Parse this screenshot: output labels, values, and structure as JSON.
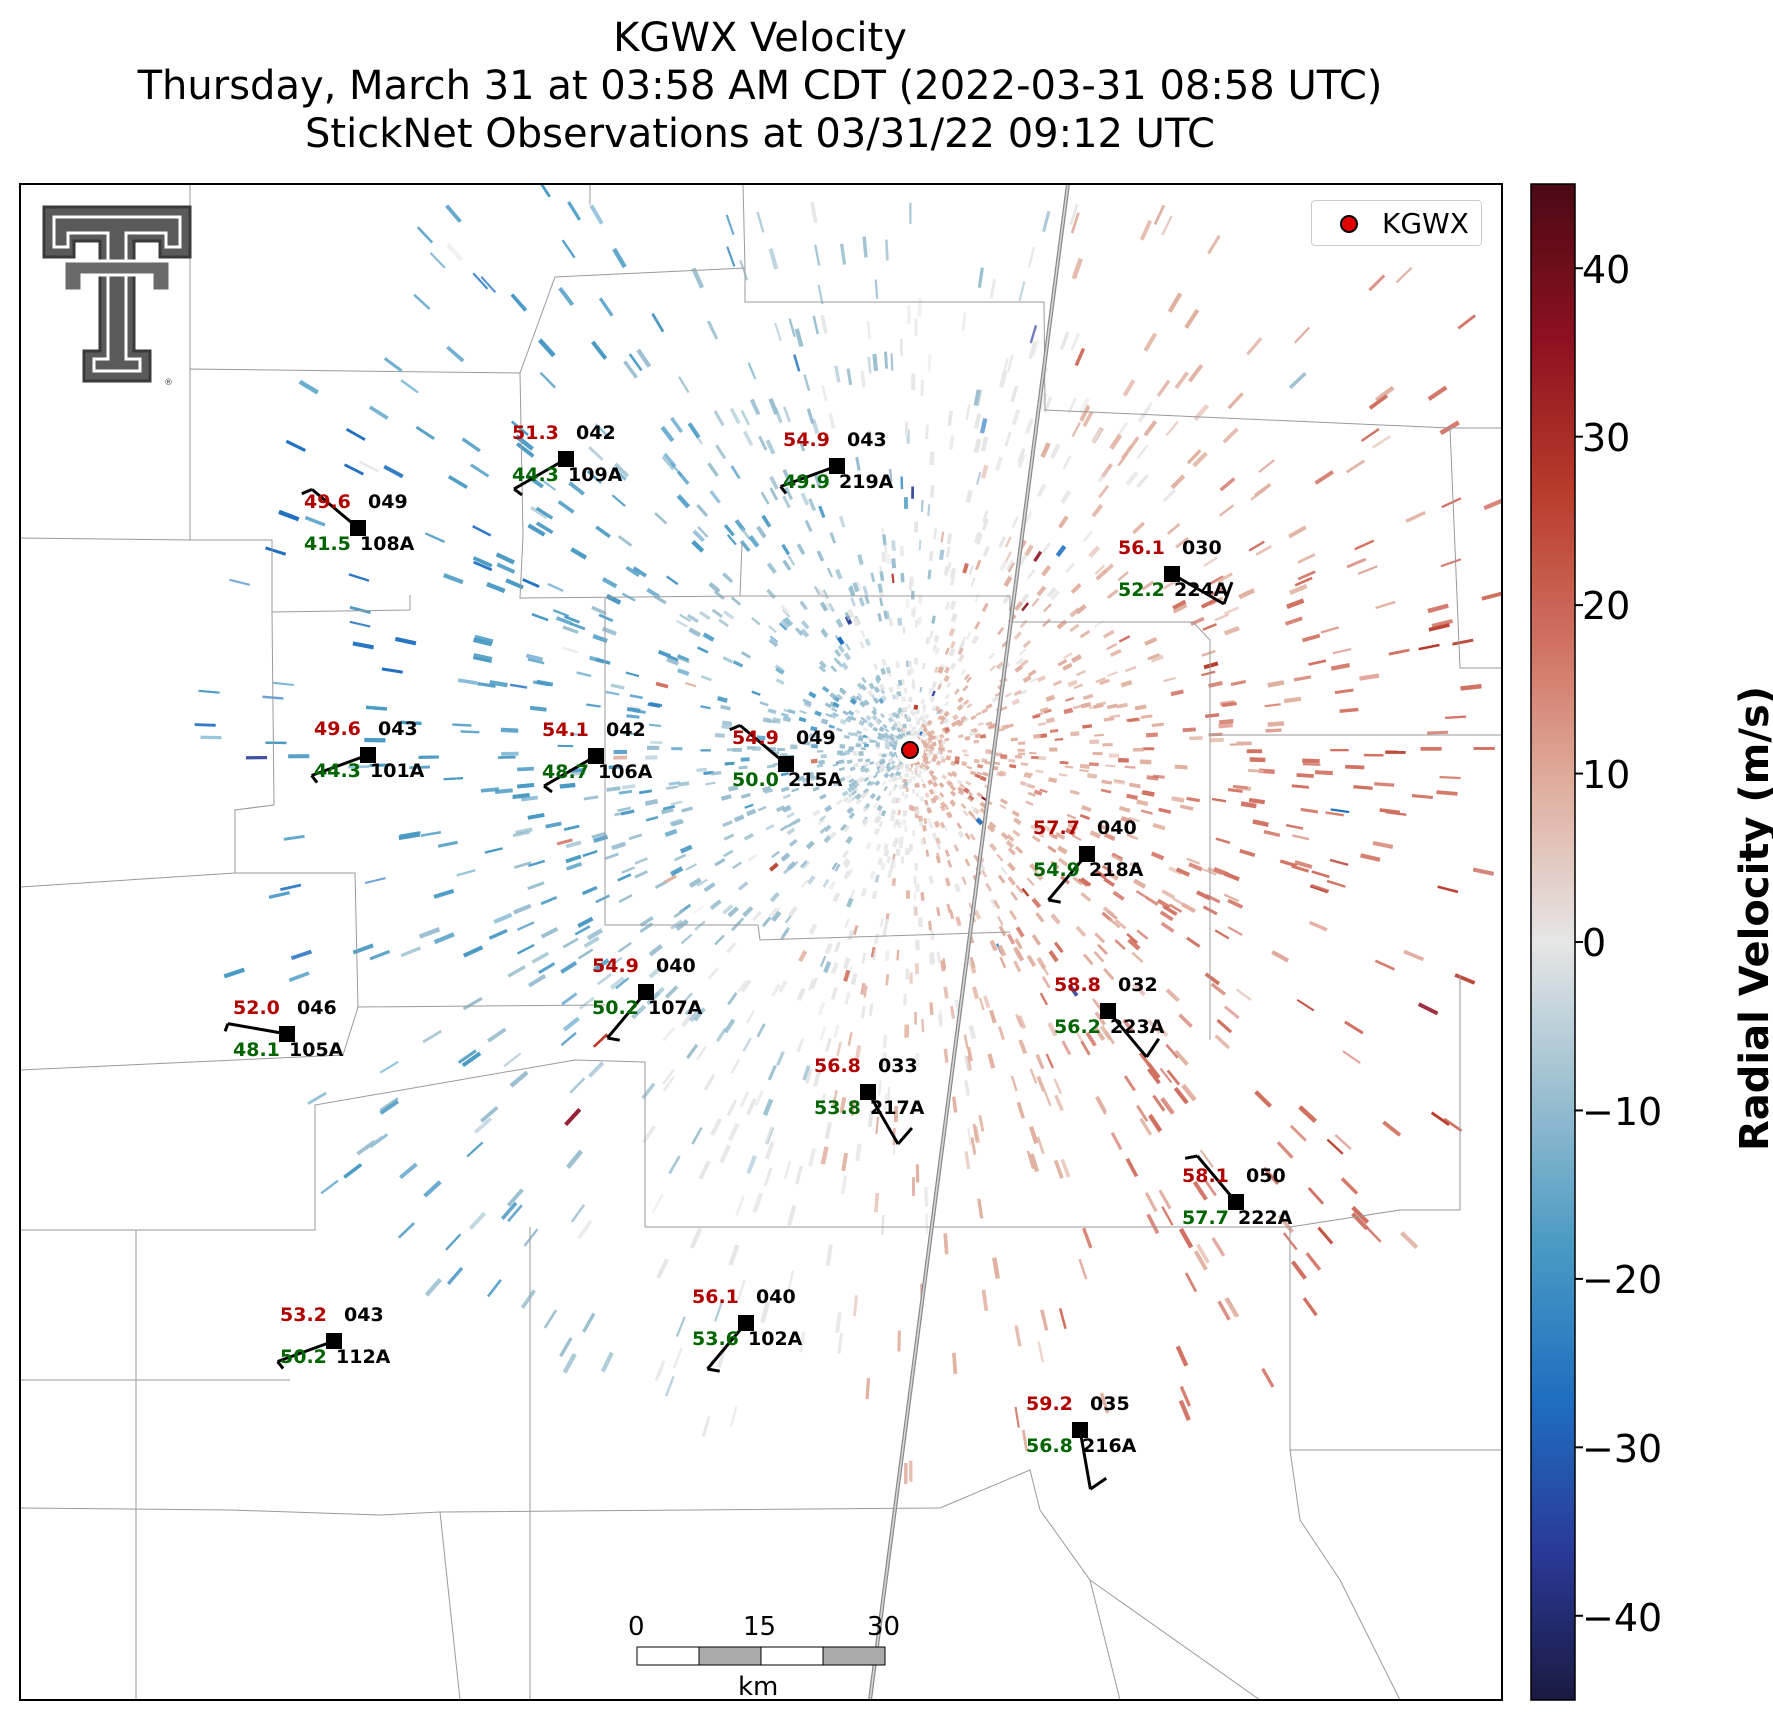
{
  "title": {
    "line1": "KGWX Velocity",
    "line2": "Thursday, March 31 at 03:58 AM CDT (2022-03-31 08:58 UTC)",
    "line3": "StickNet Observations at 03/31/22 09:12 UTC"
  },
  "radar": {
    "name": "KGWX"
  },
  "legend": {
    "label": "KGWX"
  },
  "colorbar": {
    "label": "Radial Velocity (m/s)",
    "ticks": [
      "40",
      "30",
      "20",
      "10",
      "0",
      "−10",
      "−20",
      "−30",
      "−40"
    ],
    "tick_values": [
      40,
      30,
      20,
      10,
      0,
      -10,
      -20,
      -30,
      -40
    ],
    "range": [
      -45,
      45
    ],
    "colors": [
      "#1a1a40",
      "#2a3a9a",
      "#1f6fc0",
      "#4a9ac4",
      "#9bbfd0",
      "#e6e6e6",
      "#e0b0a0",
      "#d07060",
      "#b83a2a",
      "#8c1020",
      "#4a0a14"
    ]
  },
  "scale_bar": {
    "ticks": [
      "0",
      "15",
      "30"
    ],
    "unit": "km"
  },
  "logo": {
    "name": "Texas Tech Double T",
    "mark": "®"
  },
  "stations": [
    {
      "id": "108A",
      "temp": "49.6",
      "dew": "41.5",
      "dir": "049"
    },
    {
      "id": "109A",
      "temp": "51.3",
      "dew": "44.3",
      "dir": "042"
    },
    {
      "id": "219A",
      "temp": "54.9",
      "dew": "49.9",
      "dir": "043"
    },
    {
      "id": "224A",
      "temp": "56.1",
      "dew": "52.2",
      "dir": "030"
    },
    {
      "id": "101A",
      "temp": "49.6",
      "dew": "44.3",
      "dir": "043"
    },
    {
      "id": "106A",
      "temp": "54.1",
      "dew": "48.7",
      "dir": "042"
    },
    {
      "id": "215A",
      "temp": "54.9",
      "dew": "50.0",
      "dir": "049"
    },
    {
      "id": "218A",
      "temp": "57.7",
      "dew": "54.9",
      "dir": "040"
    },
    {
      "id": "107A",
      "temp": "54.9",
      "dew": "50.2",
      "dir": "040"
    },
    {
      "id": "105A",
      "temp": "52.0",
      "dew": "48.1",
      "dir": "046"
    },
    {
      "id": "223A",
      "temp": "58.8",
      "dew": "56.2",
      "dir": "032"
    },
    {
      "id": "217A",
      "temp": "56.8",
      "dew": "53.8",
      "dir": "033"
    },
    {
      "id": "222A",
      "temp": "58.1",
      "dew": "57.7",
      "dir": "050"
    },
    {
      "id": "112A",
      "temp": "53.2",
      "dew": "50.2",
      "dir": "043"
    },
    {
      "id": "102A",
      "temp": "56.1",
      "dew": "53.6",
      "dir": "040"
    },
    {
      "id": "216A",
      "temp": "59.2",
      "dew": "56.8",
      "dir": "035"
    }
  ]
}
